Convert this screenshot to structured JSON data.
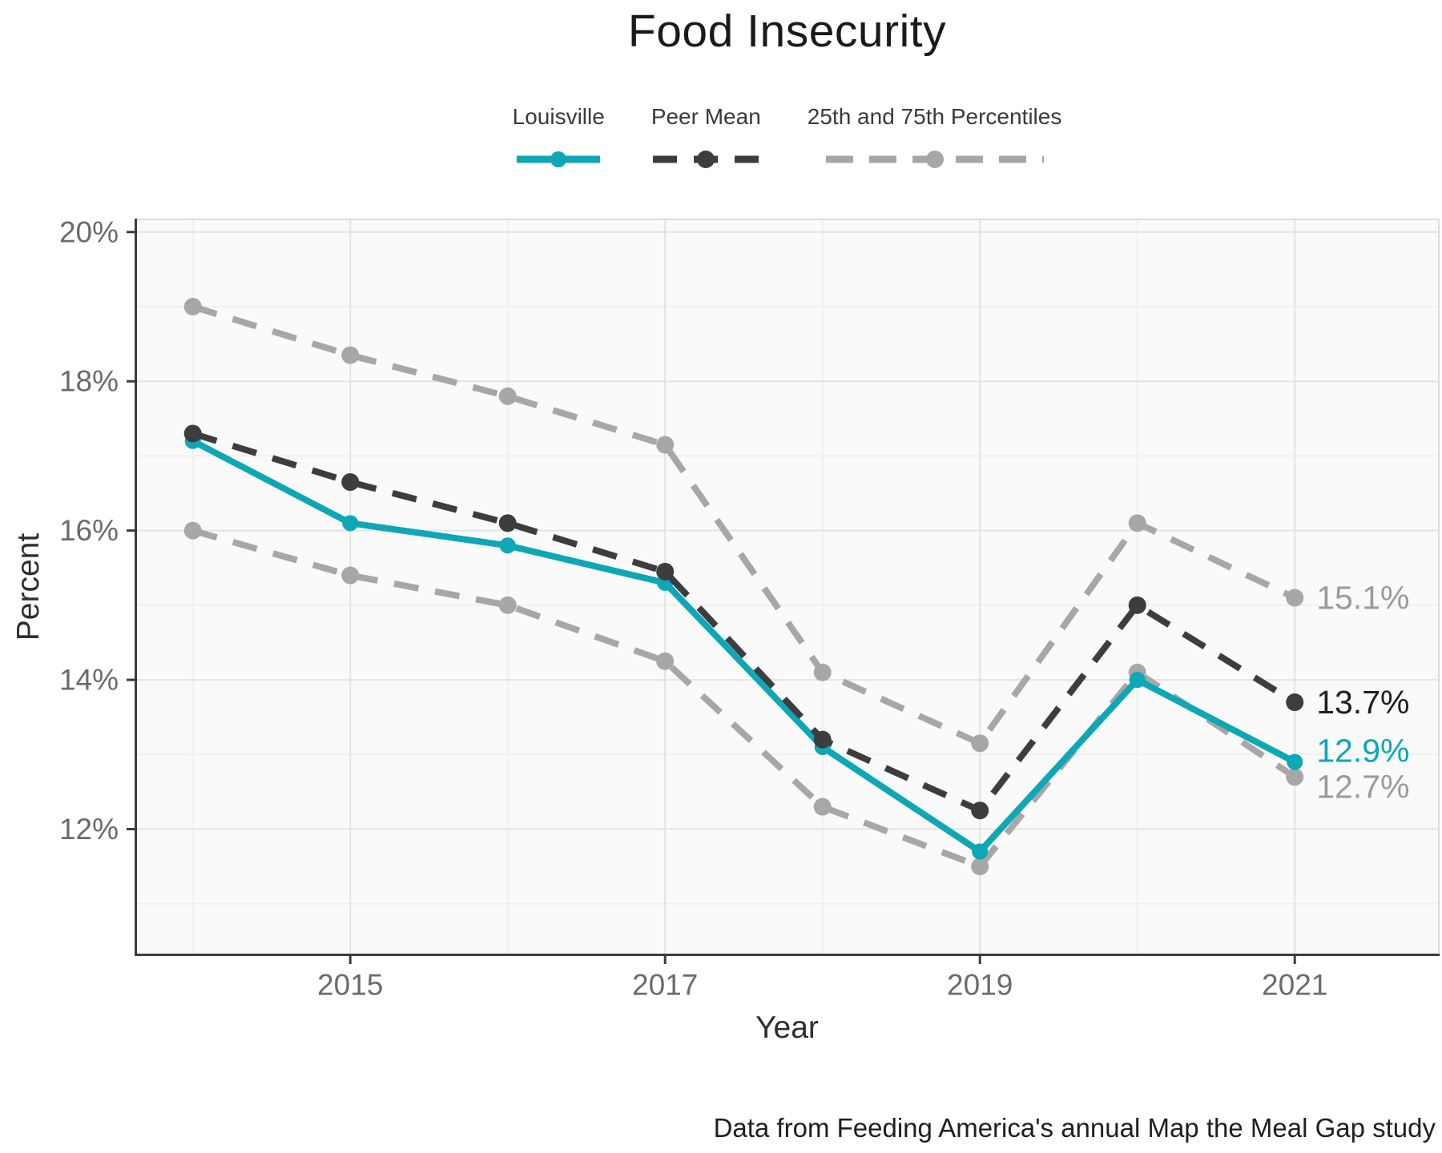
{
  "title": "Food Insecurity",
  "caption": "Data from Feeding America's annual Map the Meal Gap study",
  "colors": {
    "louisville": "#0da7b5",
    "peer_mean": "#3d3d3d",
    "percentiles": "#a7a7a7",
    "end_label_peer": "#1f1f1f",
    "end_label_gray": "#9b9b9b",
    "axis_text": "#6b6b6b",
    "axis_title": "#2e2e2e",
    "grid_major": "#e3e3e3",
    "grid_minor": "#f0f0f0",
    "axis_line": "#3c3c3c",
    "border_light": "#dcdcdc",
    "panel_bg": "#fafafa"
  },
  "legend": {
    "items": [
      {
        "label": "Louisville",
        "key": "louisville"
      },
      {
        "label": "Peer Mean",
        "key": "peer_mean"
      },
      {
        "label": "25th and 75th Percentiles",
        "key": "percentiles"
      }
    ]
  },
  "chart_data": {
    "type": "line",
    "title": "Food Insecurity",
    "xlabel": "Year",
    "ylabel": "Percent",
    "x": [
      2014,
      2015,
      2016,
      2017,
      2018,
      2019,
      2020,
      2021
    ],
    "series": [
      {
        "id": "p75",
        "name": "75th Percentile",
        "style": "dashed",
        "color_key": "percentiles",
        "values": [
          19.0,
          18.35,
          17.8,
          17.15,
          14.1,
          13.15,
          16.1,
          15.1
        ]
      },
      {
        "id": "p25",
        "name": "25th Percentile",
        "style": "dashed",
        "color_key": "percentiles",
        "values": [
          16.0,
          15.4,
          15.0,
          14.25,
          12.3,
          11.5,
          14.1,
          12.7
        ]
      },
      {
        "id": "louisville",
        "name": "Louisville",
        "style": "solid",
        "color_key": "louisville",
        "values": [
          17.2,
          16.1,
          15.8,
          15.3,
          13.1,
          11.7,
          14.0,
          12.9
        ]
      },
      {
        "id": "peer_mean",
        "name": "Peer Mean",
        "style": "dashed",
        "color_key": "peer_mean",
        "values": [
          17.3,
          16.65,
          16.1,
          15.45,
          13.2,
          12.25,
          15.0,
          13.7
        ]
      }
    ],
    "end_labels": [
      {
        "series": "p75",
        "text": "15.1%",
        "dy": 0,
        "color_key": "end_label_gray"
      },
      {
        "series": "peer_mean",
        "text": "13.7%",
        "dy": 0,
        "color_key": "end_label_peer"
      },
      {
        "series": "louisville",
        "text": "12.9%",
        "dy": -14,
        "color_key": "louisville"
      },
      {
        "series": "p25",
        "text": "12.7%",
        "dy": 12,
        "color_key": "end_label_gray"
      }
    ],
    "x_ticks": [
      {
        "value": 2015,
        "label": "2015"
      },
      {
        "value": 2017,
        "label": "2017"
      },
      {
        "value": 2019,
        "label": "2019"
      },
      {
        "value": 2021,
        "label": "2021"
      }
    ],
    "y_ticks": [
      {
        "value": 12,
        "label": "12%"
      },
      {
        "value": 14,
        "label": "14%"
      },
      {
        "value": 16,
        "label": "16%"
      },
      {
        "value": 18,
        "label": "18%"
      },
      {
        "value": 20,
        "label": "20%"
      }
    ],
    "x_minor": [
      2014,
      2016,
      2018,
      2020
    ],
    "y_minor": [
      11,
      13,
      15,
      17,
      19
    ],
    "xlim": [
      2013.63,
      2021.92
    ],
    "ylim": [
      10.3,
      20.18
    ],
    "grid": true,
    "legend_position": "top"
  }
}
